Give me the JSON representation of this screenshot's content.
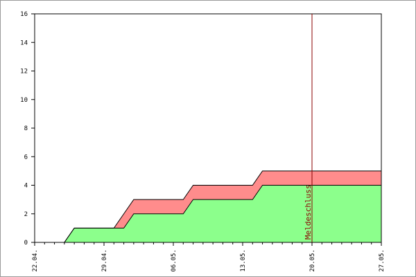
{
  "chart_data": {
    "type": "stacked_area",
    "x": [
      0,
      3,
      4,
      8,
      9,
      10,
      15,
      16,
      22,
      23,
      35
    ],
    "series": [
      {
        "color": "#8cff8c",
        "values": [
          0,
          0,
          1,
          1,
          1,
          2,
          2,
          3,
          3,
          4,
          4
        ]
      },
      {
        "color": "#ff8c8c",
        "values": [
          0,
          0,
          0,
          0,
          1,
          1,
          1,
          1,
          1,
          1,
          1
        ]
      }
    ],
    "xlim": [
      0,
      35
    ],
    "xticks": [
      {
        "value": 0,
        "label": "22.04."
      },
      {
        "value": 7,
        "label": "29.04."
      },
      {
        "value": 14,
        "label": "06.05."
      },
      {
        "value": 21,
        "label": "13.05."
      },
      {
        "value": 28,
        "label": "20.05."
      },
      {
        "value": 35,
        "label": "27.05."
      }
    ],
    "xminorticks": [
      1,
      2,
      3,
      4,
      5,
      6,
      8,
      9,
      10,
      11,
      12,
      13,
      15,
      16,
      17,
      18,
      19,
      20,
      22,
      23,
      24,
      25,
      26,
      27,
      29,
      30,
      31,
      32,
      33,
      34
    ],
    "ylim": [
      0,
      16
    ],
    "yticks": [
      0,
      2,
      4,
      6,
      8,
      10,
      12,
      14,
      16
    ],
    "annotation": {
      "text": "Meldeschluss",
      "x": 28,
      "color": "#8b0000"
    }
  }
}
